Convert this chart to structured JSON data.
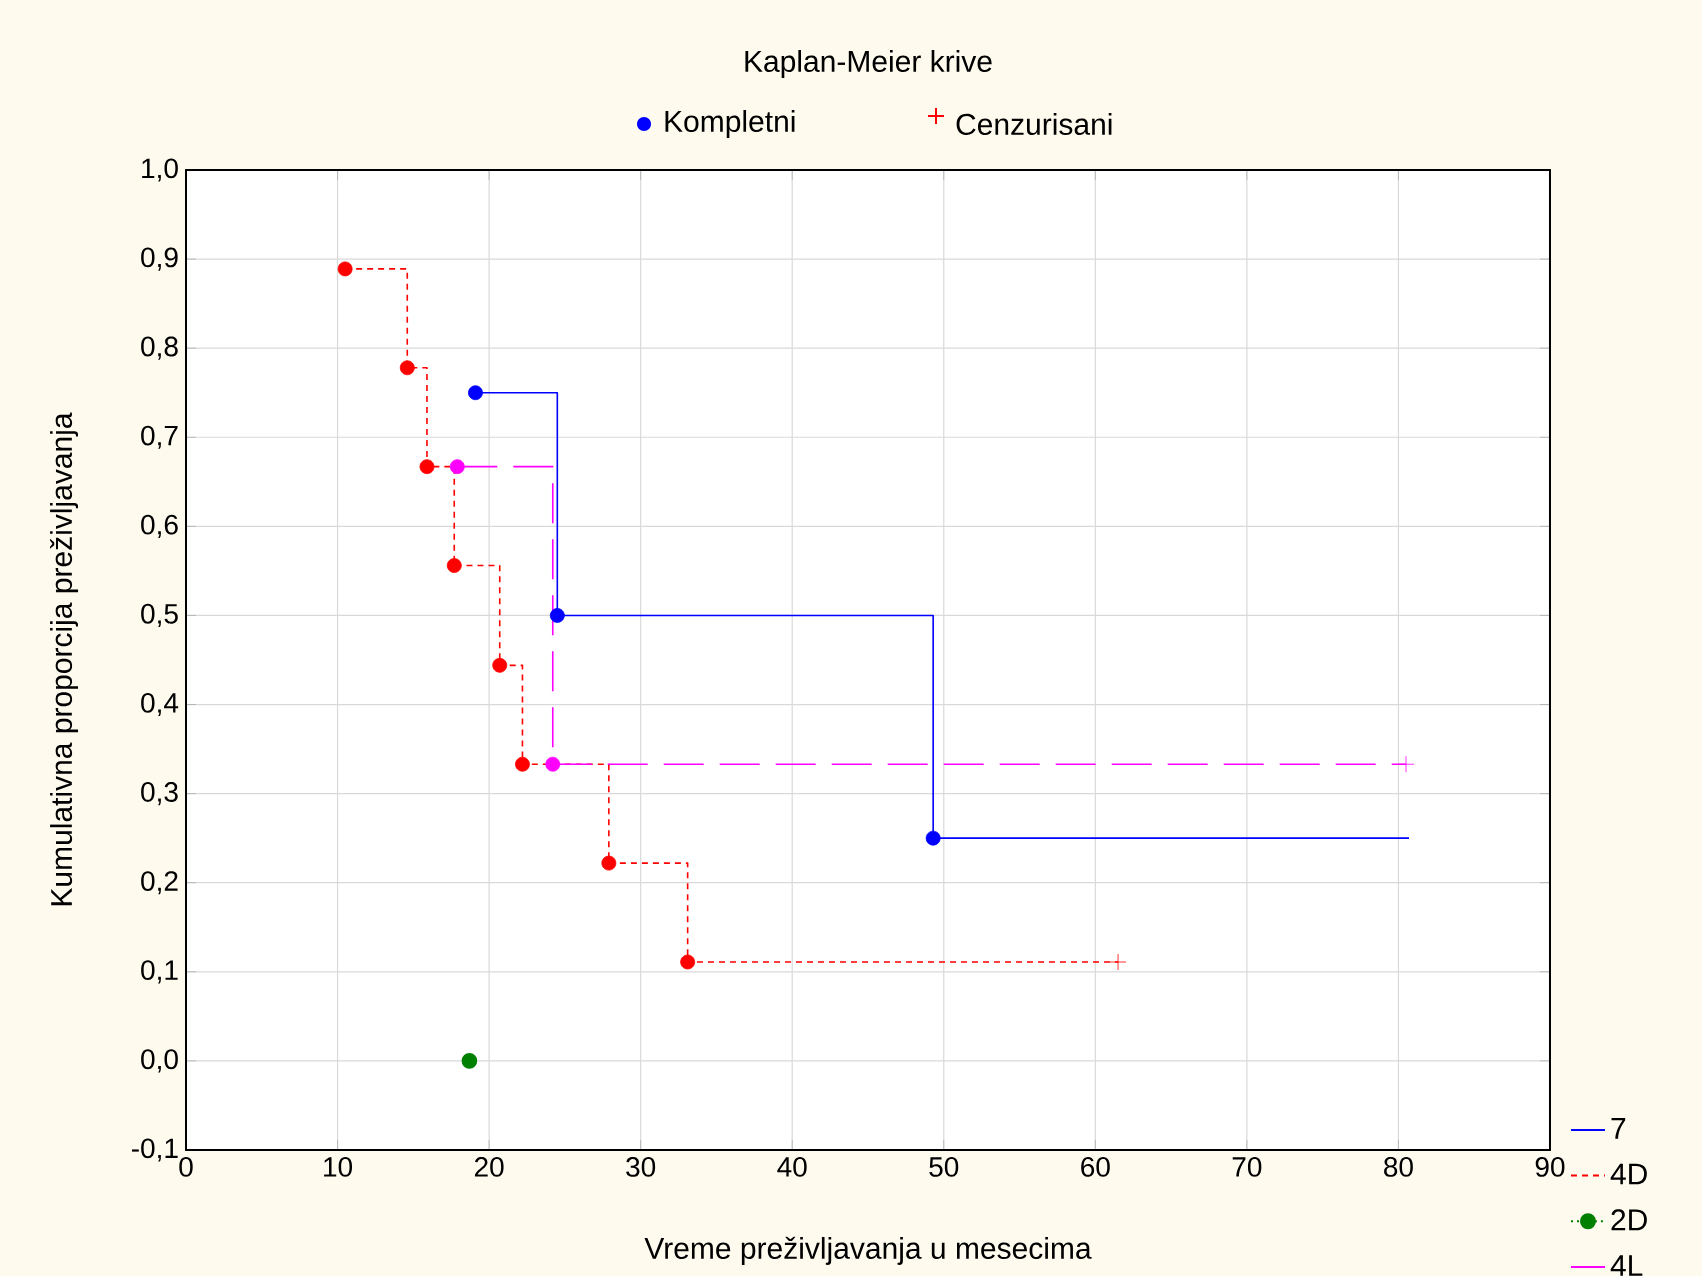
{
  "chart_data": {
    "type": "step",
    "title": "Kaplan-Meier krive",
    "xlabel": "Vreme preživljavanja u mesecima",
    "ylabel": "Kumulativna proporcija preživljavanja",
    "xlim": [
      0,
      90
    ],
    "xticks": [
      0,
      10,
      20,
      30,
      40,
      50,
      60,
      70,
      80,
      90
    ],
    "ylim": [
      -0.1,
      1.0
    ],
    "yticks": [
      {
        "value": -0.1,
        "label": "-0,1"
      },
      {
        "value": 0,
        "label": "0,0"
      },
      {
        "value": 0.1,
        "label": "0,1"
      },
      {
        "value": 0.2,
        "label": "0,2"
      },
      {
        "value": 0.3,
        "label": "0,3"
      },
      {
        "value": 0.4,
        "label": "0,4"
      },
      {
        "value": 0.5,
        "label": "0,5"
      },
      {
        "value": 0.6,
        "label": "0,6"
      },
      {
        "value": 0.7,
        "label": "0,7"
      },
      {
        "value": 0.8,
        "label": "0,8"
      },
      {
        "value": 0.9,
        "label": "0,9"
      },
      {
        "value": 1.0,
        "label": "1,0"
      }
    ],
    "grid": true,
    "legend": "bottom right",
    "series": [
      {
        "name": "7",
        "color": "#0000ff",
        "line_style": "solid",
        "marker": "none",
        "x": [
          19.1,
          24.5,
          49.3,
          80.7
        ],
        "values": [
          0.75,
          0.5,
          0.25,
          0.25
        ]
      },
      {
        "name": "4D",
        "color": "#ff0000",
        "line_style": "dashed",
        "marker": "none",
        "x": [
          10.5,
          14.6,
          15.9,
          17.7,
          20.7,
          22.2,
          27.9,
          33.1,
          61.5
        ],
        "values": [
          0.889,
          0.778,
          0.667,
          0.556,
          0.444,
          0.333,
          0.222,
          0.111,
          0.111
        ]
      },
      {
        "name": "2D",
        "color": "#008000",
        "line_style": "dotted",
        "marker": "circle",
        "x": [
          18.7
        ],
        "values": [
          0.0
        ]
      },
      {
        "name": "4L",
        "color": "#ff00ff",
        "line_style": "long dashed",
        "marker": "none",
        "x": [
          17.9,
          24.2,
          80.5
        ],
        "values": [
          0.667,
          0.333,
          0.333
        ]
      },
      {
        "name": "Kompletni",
        "type": "scatter",
        "marker": "circle",
        "x": [
          19.1,
          24.5,
          49.3,
          10.5,
          14.6,
          15.9,
          17.7,
          20.7,
          22.2,
          27.9,
          33.1,
          17.9,
          24.2
        ],
        "values": [
          0.75,
          0.5,
          0.25,
          0.889,
          0.778,
          0.667,
          0.556,
          0.444,
          0.333,
          0.222,
          0.111,
          0.667,
          0.333
        ],
        "colors": [
          "#0000ff",
          "#0000ff",
          "#0000ff",
          "#ff0000",
          "#ff0000",
          "#ff0000",
          "#ff0000",
          "#ff0000",
          "#ff0000",
          "#ff0000",
          "#ff0000",
          "#ff00ff",
          "#ff00ff"
        ]
      },
      {
        "name": "Cenzurisani",
        "type": "scatter",
        "marker": "cross",
        "x": [
          61.5,
          80.5
        ],
        "values": [
          0.111,
          0.333
        ],
        "colors": [
          "#ff0000",
          "#ff00ff"
        ]
      }
    ]
  }
}
